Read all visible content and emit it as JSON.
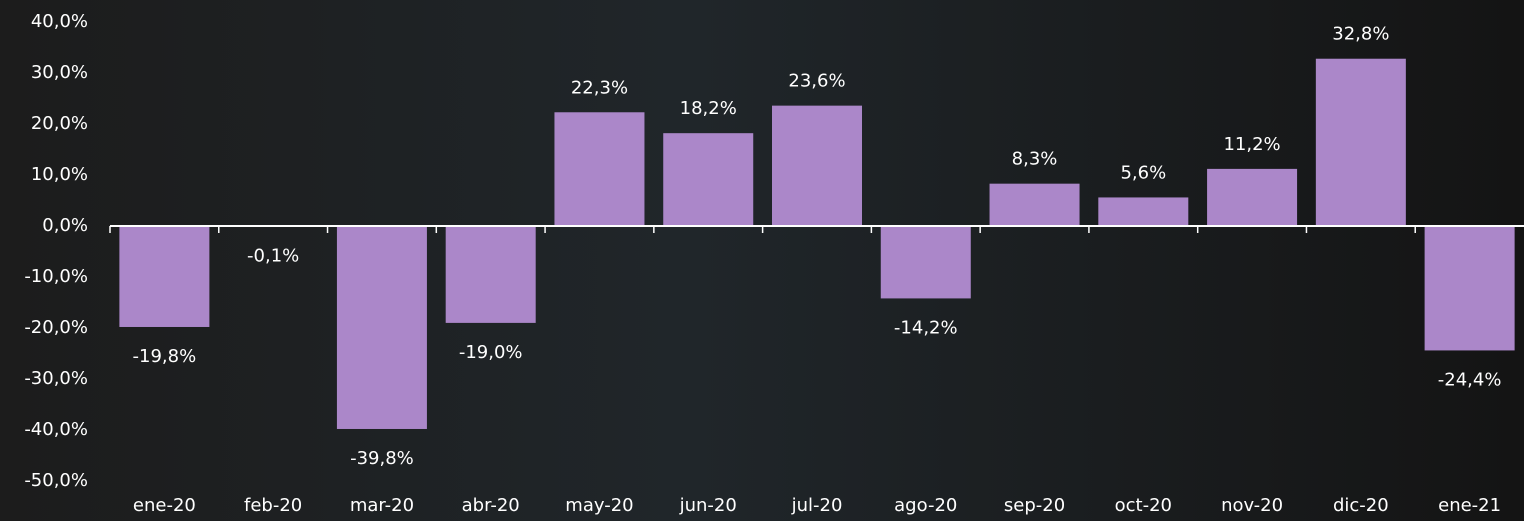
{
  "chart_data": {
    "type": "bar",
    "categories": [
      "ene-20",
      "feb-20",
      "mar-20",
      "abr-20",
      "may-20",
      "jun-20",
      "jul-20",
      "ago-20",
      "sep-20",
      "oct-20",
      "nov-20",
      "dic-20",
      "ene-21"
    ],
    "values": [
      -19.8,
      -0.1,
      -39.8,
      -19.0,
      22.3,
      18.2,
      23.6,
      -14.2,
      8.3,
      5.6,
      11.2,
      32.8,
      -24.4
    ],
    "value_labels": [
      "-19,8%",
      "-0,1%",
      "-39,8%",
      "-19,0%",
      "22,3%",
      "18,2%",
      "23,6%",
      "-14,2%",
      "8,3%",
      "5,6%",
      "11,2%",
      "32,8%",
      "-24,4%"
    ],
    "color": "#ab87c9",
    "ylim": [
      -50,
      40
    ],
    "yticks": [
      {
        "value": 40,
        "label": "40,0%"
      },
      {
        "value": 30,
        "label": "30,0%"
      },
      {
        "value": 20,
        "label": "20,0%"
      },
      {
        "value": 10,
        "label": "10,0%"
      },
      {
        "value": 0,
        "label": "0,0%"
      },
      {
        "value": -10,
        "label": "-10,0%"
      },
      {
        "value": -20,
        "label": "-20,0%"
      },
      {
        "value": -30,
        "label": "-30,0%"
      },
      {
        "value": -40,
        "label": "-40,0%"
      },
      {
        "value": -50,
        "label": "-50,0%"
      }
    ],
    "grid": false
  }
}
